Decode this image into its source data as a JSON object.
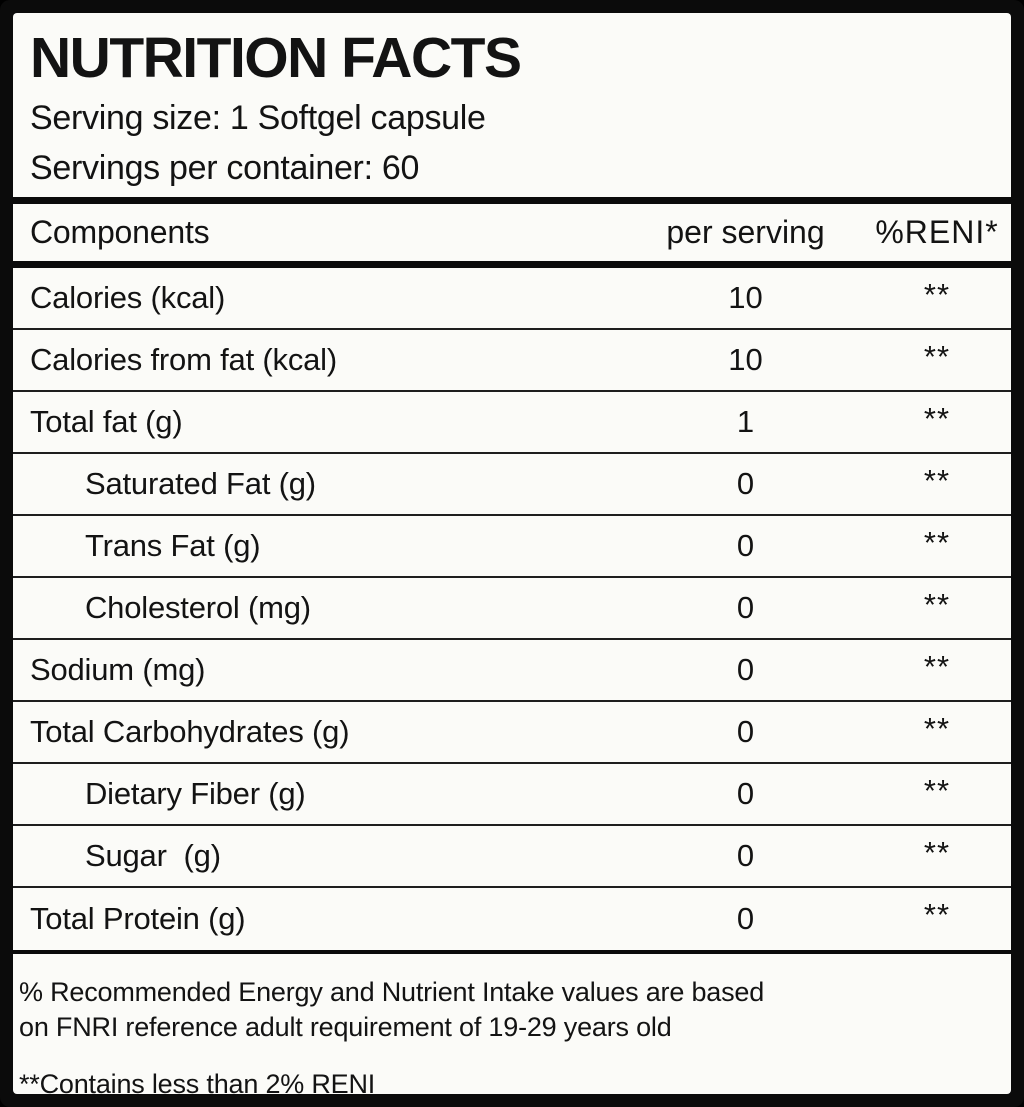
{
  "masthead": {
    "title": "NUTRITION FACTS",
    "serving_size": "Serving size: 1 Softgel capsule",
    "servings_per_container": "Servings per container: 60"
  },
  "table": {
    "columns": [
      "Components",
      "per serving",
      "%RENI*"
    ],
    "rows": [
      {
        "component": "Calories (kcal)",
        "per_serving": "10",
        "reni": "**",
        "indent": false
      },
      {
        "component": "Calories from fat (kcal)",
        "per_serving": "10",
        "reni": "**",
        "indent": false
      },
      {
        "component": "Total fat (g)",
        "per_serving": "1",
        "reni": "**",
        "indent": false
      },
      {
        "component": "Saturated Fat (g)",
        "per_serving": "0",
        "reni": "**",
        "indent": true
      },
      {
        "component": "Trans Fat (g)",
        "per_serving": "0",
        "reni": "**",
        "indent": true
      },
      {
        "component": "Cholesterol (mg)",
        "per_serving": "0",
        "reni": "**",
        "indent": true
      },
      {
        "component": "Sodium (mg)",
        "per_serving": "0",
        "reni": "**",
        "indent": false
      },
      {
        "component": "Total Carbohydrates (g)",
        "per_serving": "0",
        "reni": "**",
        "indent": false
      },
      {
        "component": "Dietary Fiber (g)",
        "per_serving": "0",
        "reni": "**",
        "indent": true
      },
      {
        "component": "Sugar  (g)",
        "per_serving": "0",
        "reni": "**",
        "indent": true
      },
      {
        "component": "Total Protein (g)",
        "per_serving": "0",
        "reni": "**",
        "indent": false
      }
    ]
  },
  "footnotes": {
    "reni_note_lines": [
      "% Recommended Energy and Nutrient Intake values are based",
      "on FNRI reference adult requirement of 19-29 years old"
    ],
    "contains_note": "**Contains less than 2% RENI"
  },
  "colors": {
    "ink": "#131313",
    "paper": "#fbfbf8",
    "border": "#0b0b0b",
    "rule": "#1e1e1e"
  }
}
